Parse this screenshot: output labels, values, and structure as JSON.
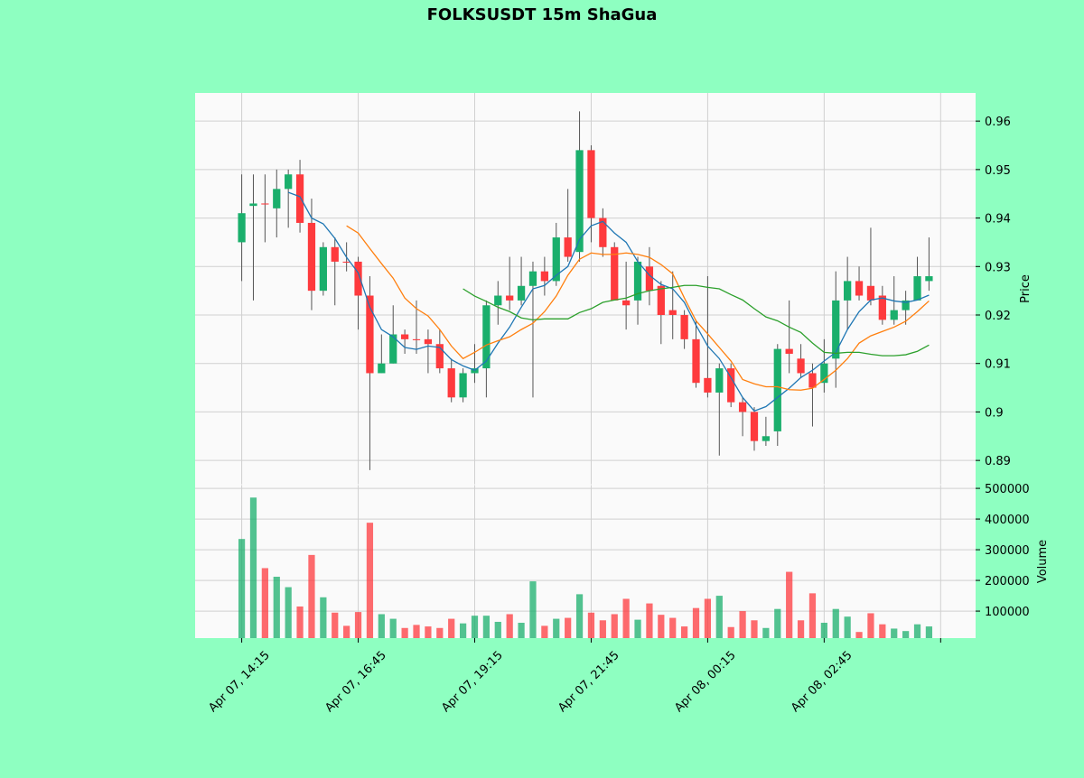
{
  "chart_data": {
    "type": "candlestick",
    "title": "FOLKSUSDT 15m ShaGua",
    "ylabel": "Price",
    "volume_ylabel": "Volume",
    "categories": [
      "Apr 07, 14:15",
      null,
      null,
      null,
      null,
      null,
      null,
      null,
      null,
      null,
      "Apr 07, 16:45",
      null,
      null,
      null,
      null,
      null,
      null,
      null,
      null,
      null,
      "Apr 07, 19:15",
      null,
      null,
      null,
      null,
      null,
      null,
      null,
      null,
      null,
      "Apr 07, 21:45",
      null,
      null,
      null,
      null,
      null,
      null,
      null,
      null,
      null,
      "Apr 08, 00:15",
      null,
      null,
      null,
      null,
      null,
      null,
      null,
      null,
      null,
      "Apr 08, 02:45",
      null,
      null,
      null,
      null,
      null,
      null,
      null,
      null,
      null
    ],
    "open": [
      0.935,
      0.9425,
      0.943,
      0.942,
      0.946,
      0.949,
      0.939,
      0.925,
      0.934,
      0.931,
      0.931,
      0.924,
      0.908,
      0.91,
      0.916,
      0.915,
      0.915,
      0.914,
      0.909,
      0.903,
      0.908,
      0.909,
      0.922,
      0.924,
      0.923,
      0.926,
      0.929,
      0.927,
      0.936,
      0.933,
      0.954,
      0.94,
      0.934,
      0.923,
      0.923,
      0.93,
      0.926,
      0.921,
      0.92,
      0.915,
      0.907,
      0.904,
      0.909,
      0.902,
      0.9,
      0.894,
      0.896,
      0.913,
      0.911,
      0.908,
      0.906,
      0.911,
      0.923,
      0.927,
      0.926,
      0.924,
      0.919,
      0.921,
      0.923,
      0.927
    ],
    "high": [
      0.949,
      0.949,
      0.949,
      0.95,
      0.95,
      0.952,
      0.944,
      0.935,
      0.936,
      0.935,
      0.932,
      0.928,
      0.916,
      0.922,
      0.917,
      0.923,
      0.917,
      0.917,
      0.911,
      0.909,
      0.914,
      0.923,
      0.927,
      0.932,
      0.932,
      0.931,
      0.932,
      0.939,
      0.946,
      0.962,
      0.955,
      0.942,
      0.935,
      0.931,
      0.932,
      0.934,
      0.927,
      0.929,
      0.921,
      0.919,
      0.928,
      0.91,
      0.91,
      0.903,
      0.901,
      0.899,
      0.914,
      0.923,
      0.914,
      0.91,
      0.915,
      0.929,
      0.932,
      0.93,
      0.938,
      0.926,
      0.928,
      0.925,
      0.932,
      0.936
    ],
    "low": [
      0.927,
      0.923,
      0.935,
      0.936,
      0.938,
      0.937,
      0.921,
      0.924,
      0.922,
      0.929,
      0.917,
      0.888,
      0.908,
      0.91,
      0.912,
      0.912,
      0.908,
      0.908,
      0.902,
      0.902,
      0.906,
      0.903,
      0.918,
      0.921,
      0.922,
      0.903,
      0.924,
      0.926,
      0.931,
      0.931,
      0.935,
      0.932,
      0.923,
      0.917,
      0.918,
      0.922,
      0.914,
      0.915,
      0.913,
      0.905,
      0.903,
      0.891,
      0.901,
      0.895,
      0.892,
      0.893,
      0.893,
      0.908,
      0.907,
      0.897,
      0.904,
      0.905,
      0.917,
      0.923,
      0.922,
      0.918,
      0.918,
      0.918,
      0.923,
      0.925
    ],
    "close": [
      0.941,
      0.943,
      0.9428,
      0.946,
      0.949,
      0.939,
      0.925,
      0.934,
      0.931,
      0.9308,
      0.924,
      0.908,
      0.91,
      0.916,
      0.915,
      0.9148,
      0.914,
      0.909,
      0.903,
      0.908,
      0.909,
      0.922,
      0.924,
      0.923,
      0.926,
      0.929,
      0.927,
      0.936,
      0.932,
      0.954,
      0.94,
      0.934,
      0.923,
      0.922,
      0.931,
      0.925,
      0.92,
      0.92,
      0.915,
      0.906,
      0.904,
      0.909,
      0.902,
      0.9,
      0.894,
      0.895,
      0.913,
      0.912,
      0.908,
      0.905,
      0.91,
      0.923,
      0.927,
      0.924,
      0.923,
      0.919,
      0.921,
      0.923,
      0.928,
      0.928
    ],
    "volume": [
      335000,
      470000,
      240000,
      212000,
      178000,
      115000,
      283000,
      145000,
      95000,
      52000,
      97000,
      388000,
      90000,
      75000,
      45000,
      55000,
      50000,
      45000,
      75000,
      60000,
      85000,
      85000,
      65000,
      90000,
      62000,
      197000,
      52000,
      75000,
      78000,
      155000,
      95000,
      70000,
      90000,
      140000,
      72000,
      125000,
      88000,
      78000,
      50000,
      110000,
      140000,
      150000,
      48000,
      100000,
      70000,
      45000,
      107000,
      228000,
      70000,
      158000,
      62000,
      107000,
      82000,
      32000,
      93000,
      57000,
      43000,
      35000,
      57000,
      50000
    ],
    "up_color": "#1aaf6c",
    "down_color": "#fe3a3d",
    "lines": [
      {
        "color": "#1f77b4",
        "values": [
          null,
          null,
          null,
          null,
          0.9453,
          0.9444,
          0.94,
          0.9388,
          0.9358,
          0.9319,
          0.9287,
          0.9216,
          0.917,
          0.9155,
          0.9133,
          0.9129,
          0.9136,
          0.9133,
          0.9108,
          0.9095,
          0.9086,
          0.9105,
          0.9142,
          0.9175,
          0.9216,
          0.9254,
          0.9261,
          0.9282,
          0.93,
          0.9356,
          0.9384,
          0.9393,
          0.9369,
          0.935,
          0.931,
          0.9282,
          0.9263,
          0.9254,
          0.9226,
          0.9179,
          0.9136,
          0.911,
          0.9071,
          0.903,
          0.9002,
          0.9011,
          0.903,
          0.9049,
          0.9071,
          0.9086,
          0.9105,
          0.9123,
          0.917,
          0.9207,
          0.9231,
          0.9235,
          0.9229,
          0.9226,
          0.9231,
          0.9241
        ]
      },
      {
        "color": "#ff7f0e",
        "values": [
          null,
          null,
          null,
          null,
          null,
          null,
          null,
          null,
          null,
          0.9384,
          0.9369,
          0.9337,
          0.9306,
          0.9276,
          0.9235,
          0.9213,
          0.9198,
          0.917,
          0.9136,
          0.911,
          0.9123,
          0.9138,
          0.9147,
          0.9155,
          0.917,
          0.9183,
          0.9207,
          0.9239,
          0.9282,
          0.9315,
          0.9328,
          0.9325,
          0.9325,
          0.9328,
          0.9325,
          0.9319,
          0.9304,
          0.9285,
          0.9235,
          0.9188,
          0.9161,
          0.9133,
          0.9105,
          0.9067,
          0.9058,
          0.9052,
          0.9052,
          0.9046,
          0.9045,
          0.9049,
          0.9067,
          0.9086,
          0.911,
          0.9142,
          0.9157,
          0.9166,
          0.9175,
          0.9187,
          0.9207,
          0.9229
        ]
      },
      {
        "color": "#2ca02c",
        "values": [
          null,
          null,
          null,
          null,
          null,
          null,
          null,
          null,
          null,
          null,
          null,
          null,
          null,
          null,
          null,
          null,
          null,
          null,
          null,
          0.9254,
          0.9239,
          0.9228,
          0.9216,
          0.9207,
          0.9194,
          0.919,
          0.9192,
          0.9192,
          0.9192,
          0.9205,
          0.9213,
          0.9226,
          0.9231,
          0.9235,
          0.9244,
          0.925,
          0.9254,
          0.9257,
          0.9261,
          0.9261,
          0.9257,
          0.9254,
          0.9242,
          0.9231,
          0.9213,
          0.9196,
          0.9188,
          0.9175,
          0.9164,
          0.9142,
          0.9123,
          0.9121,
          0.9123,
          0.9123,
          0.9119,
          0.9116,
          0.9116,
          0.9118,
          0.9125,
          0.9138
        ]
      }
    ],
    "xlim": [
      -4,
      63
    ],
    "ylim": [
      0.885,
      0.9658
    ],
    "yticks": [
      0.89,
      0.9,
      0.91,
      0.92,
      0.93,
      0.94,
      0.95,
      0.96
    ],
    "volume_ylim": [
      12000,
      512000
    ],
    "volume_yticks": [
      100000,
      200000,
      300000,
      400000,
      500000
    ],
    "grid": true
  }
}
